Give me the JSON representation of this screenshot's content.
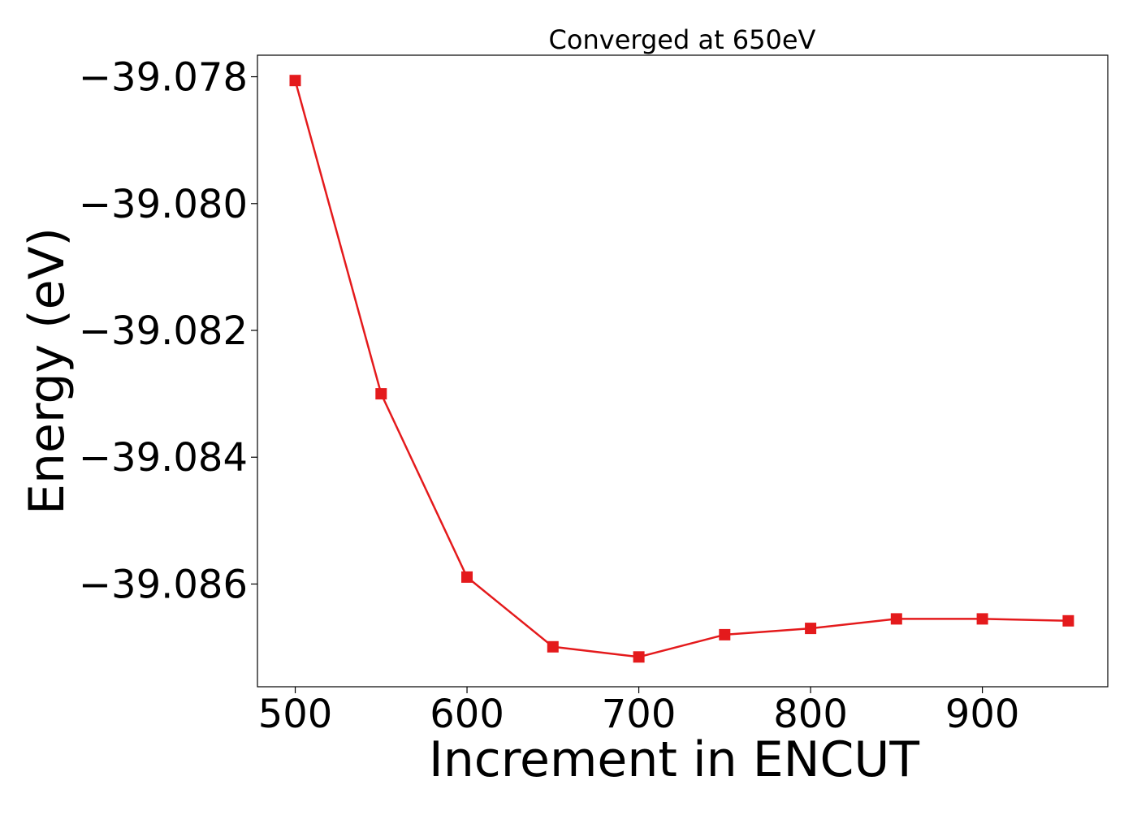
{
  "chart_data": {
    "type": "line",
    "title": "Converged at 650eV",
    "xlabel": "Increment in ENCUT",
    "ylabel": "Energy (eV)",
    "x": [
      500,
      550,
      600,
      650,
      700,
      750,
      800,
      850,
      900,
      950
    ],
    "series": [
      {
        "values": [
          -39.07806,
          -39.083,
          -39.08589,
          -39.08699,
          -39.08715,
          -39.0868,
          -39.0867,
          -39.08655,
          -39.08655,
          -39.08658
        ],
        "color": "#e41a1c",
        "marker": "square"
      }
    ],
    "xlim": [
      478,
      973
    ],
    "ylim": [
      -39.08762,
      -39.07766
    ],
    "xticks": [
      500,
      600,
      700,
      800,
      900
    ],
    "xtick_labels": [
      "500",
      "600",
      "700",
      "800",
      "900"
    ],
    "yticks": [
      -39.078,
      -39.08,
      -39.082,
      -39.084,
      -39.086
    ],
    "ytick_labels": [
      "−39.078",
      "−39.080",
      "−39.082",
      "−39.084",
      "−39.086"
    ],
    "grid": false,
    "legend": "none"
  }
}
